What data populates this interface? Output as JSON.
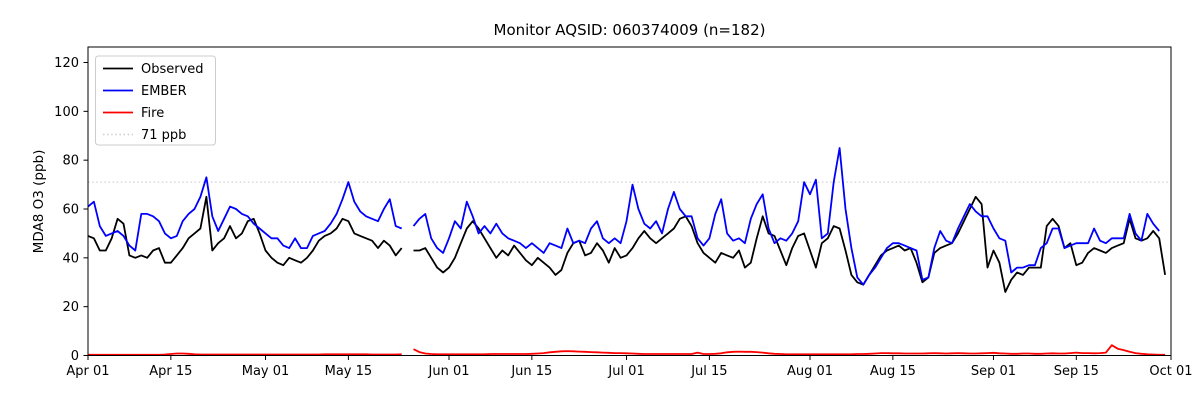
{
  "title": "Monitor AQSID: 060374009 (n=182)",
  "chart_data": {
    "type": "line",
    "title": "Monitor AQSID: 060374009 (n=182)",
    "xlabel": "",
    "ylabel": "MDA8 O3 (ppb)",
    "x_start_date": "Apr 01",
    "x_end_date": "Oct 01",
    "x_resolution": "daily",
    "n_points": 182,
    "missing_day_index": 54,
    "ylim": [
      0,
      126
    ],
    "y_ticks": [
      0,
      20,
      40,
      60,
      80,
      100,
      120
    ],
    "x_ticks": [
      {
        "label": "Apr 01",
        "day": 0
      },
      {
        "label": "Apr 15",
        "day": 14
      },
      {
        "label": "May 01",
        "day": 30
      },
      {
        "label": "May 15",
        "day": 44
      },
      {
        "label": "Jun 01",
        "day": 61
      },
      {
        "label": "Jun 15",
        "day": 75
      },
      {
        "label": "Jul 01",
        "day": 91
      },
      {
        "label": "Jul 15",
        "day": 105
      },
      {
        "label": "Aug 01",
        "day": 122
      },
      {
        "label": "Aug 15",
        "day": 136
      },
      {
        "label": "Sep 01",
        "day": 153
      },
      {
        "label": "Sep 15",
        "day": 167
      },
      {
        "label": "Oct 01",
        "day": 183
      }
    ],
    "threshold": {
      "label": "71 ppb",
      "value": 71,
      "color": "#d2d2d2",
      "style": "dotted"
    },
    "legend": {
      "position": "upper-left",
      "items": [
        {
          "label": "Observed",
          "color": "#000000",
          "style": "solid"
        },
        {
          "label": "EMBER",
          "color": "#0000ff",
          "style": "solid"
        },
        {
          "label": "Fire",
          "color": "#ff0000",
          "style": "solid"
        },
        {
          "label": "71 ppb",
          "color": "#d2d2d2",
          "style": "dotted"
        }
      ]
    },
    "series": [
      {
        "name": "Observed",
        "color": "#000000",
        "values": [
          49,
          48,
          43,
          43,
          48,
          56,
          54,
          41,
          40,
          41,
          40,
          43,
          44,
          38,
          38,
          41,
          44,
          48,
          50,
          52,
          65,
          43,
          46,
          48,
          53,
          48,
          50,
          55,
          56,
          50,
          43,
          40,
          38,
          37,
          40,
          39,
          38,
          40,
          43,
          47,
          49,
          50,
          52,
          56,
          55,
          50,
          49,
          48,
          47,
          44,
          47,
          45,
          41,
          44,
          null,
          43,
          43,
          44,
          40,
          36,
          34,
          36,
          40,
          46,
          52,
          55,
          52,
          48,
          44,
          40,
          43,
          41,
          45,
          42,
          39,
          37,
          40,
          38,
          36,
          33,
          35,
          42,
          46,
          47,
          41,
          42,
          46,
          43,
          38,
          44,
          40,
          41,
          44,
          48,
          51,
          48,
          46,
          48,
          50,
          52,
          56,
          57,
          53,
          46,
          42,
          40,
          38,
          42,
          41,
          40,
          43,
          36,
          38,
          48,
          57,
          50,
          49,
          43,
          37,
          44,
          49,
          50,
          43,
          36,
          46,
          48,
          53,
          52,
          43,
          33,
          30,
          29,
          33,
          37,
          41,
          43,
          44,
          45,
          43,
          44,
          38,
          30,
          32,
          42,
          44,
          45,
          46,
          50,
          55,
          60,
          65,
          62,
          36,
          43,
          38,
          26,
          31,
          34,
          33,
          36,
          36,
          36,
          53,
          56,
          53,
          44,
          46,
          37,
          38,
          42,
          44,
          43,
          42,
          44,
          45,
          46,
          56,
          48,
          47,
          48,
          51,
          48,
          33
        ]
      },
      {
        "name": "EMBER",
        "color": "#0000ff",
        "values": [
          61,
          63,
          53,
          49,
          50,
          51,
          49,
          45,
          43,
          58,
          58,
          57,
          55,
          50,
          48,
          49,
          55,
          58,
          60,
          65,
          73,
          57,
          51,
          56,
          61,
          60,
          58,
          57,
          54,
          52,
          50,
          48,
          48,
          45,
          44,
          48,
          44,
          44,
          49,
          50,
          51,
          54,
          58,
          64,
          71,
          63,
          59,
          57,
          56,
          55,
          60,
          64,
          53,
          52,
          null,
          53,
          56,
          58,
          48,
          44,
          42,
          48,
          55,
          52,
          63,
          57,
          50,
          53,
          50,
          54,
          50,
          48,
          47,
          46,
          44,
          46,
          44,
          42,
          46,
          45,
          44,
          52,
          46,
          47,
          46,
          52,
          55,
          48,
          46,
          48,
          46,
          55,
          70,
          60,
          54,
          52,
          55,
          50,
          60,
          67,
          60,
          57,
          57,
          48,
          45,
          48,
          58,
          64,
          50,
          47,
          48,
          46,
          56,
          62,
          66,
          52,
          46,
          48,
          47,
          50,
          55,
          71,
          66,
          72,
          48,
          50,
          71,
          85,
          60,
          44,
          32,
          29,
          33,
          36,
          40,
          44,
          46,
          46,
          45,
          44,
          43,
          31,
          32,
          44,
          51,
          47,
          46,
          52,
          57,
          62,
          59,
          57,
          57,
          52,
          48,
          47,
          34,
          36,
          36,
          37,
          37,
          44,
          46,
          52,
          52,
          44,
          45,
          46,
          46,
          46,
          52,
          47,
          46,
          48,
          48,
          48,
          58,
          50,
          47,
          58,
          54,
          51,
          null
        ]
      },
      {
        "name": "Fire",
        "color": "#ff0000",
        "values": [
          0.3,
          0.3,
          0.3,
          0.3,
          0.3,
          0.3,
          0.3,
          0.3,
          0.3,
          0.3,
          0.3,
          0.3,
          0.3,
          0.4,
          0.6,
          0.8,
          0.8,
          0.7,
          0.5,
          0.4,
          0.4,
          0.4,
          0.4,
          0.4,
          0.4,
          0.4,
          0.4,
          0.4,
          0.4,
          0.4,
          0.4,
          0.4,
          0.4,
          0.4,
          0.4,
          0.4,
          0.4,
          0.4,
          0.4,
          0.4,
          0.5,
          0.5,
          0.5,
          0.5,
          0.5,
          0.5,
          0.5,
          0.5,
          0.4,
          0.4,
          0.4,
          0.4,
          0.4,
          0.5,
          null,
          2.6,
          1.4,
          0.8,
          0.6,
          0.5,
          0.5,
          0.5,
          0.5,
          0.5,
          0.5,
          0.5,
          0.5,
          0.5,
          0.6,
          0.6,
          0.6,
          0.6,
          0.6,
          0.6,
          0.6,
          0.7,
          0.8,
          1.0,
          1.3,
          1.5,
          1.7,
          1.8,
          1.7,
          1.6,
          1.5,
          1.4,
          1.3,
          1.2,
          1.1,
          1.0,
          1.0,
          0.9,
          0.8,
          0.7,
          0.6,
          0.6,
          0.6,
          0.6,
          0.6,
          0.6,
          0.6,
          0.6,
          0.6,
          1.2,
          0.6,
          0.6,
          0.7,
          0.9,
          1.3,
          1.5,
          1.6,
          1.5,
          1.5,
          1.4,
          1.2,
          0.9,
          0.7,
          0.6,
          0.5,
          0.5,
          0.5,
          0.5,
          0.5,
          0.5,
          0.5,
          0.5,
          0.5,
          0.5,
          0.5,
          0.5,
          0.6,
          0.6,
          0.7,
          0.8,
          1.0,
          1.0,
          0.9,
          0.9,
          0.8,
          0.8,
          0.8,
          0.8,
          0.9,
          1.0,
          0.9,
          0.8,
          0.9,
          1.0,
          0.9,
          0.8,
          0.8,
          0.9,
          1.0,
          1.1,
          0.9,
          0.8,
          0.7,
          0.7,
          0.8,
          0.8,
          0.7,
          0.7,
          0.8,
          0.9,
          0.8,
          0.8,
          1.0,
          1.2,
          1.0,
          1.0,
          0.9,
          1.0,
          1.2,
          4.2,
          2.8,
          2.2,
          1.5,
          1.0,
          0.7,
          0.5,
          0.4,
          0.3,
          0.3
        ]
      }
    ]
  }
}
